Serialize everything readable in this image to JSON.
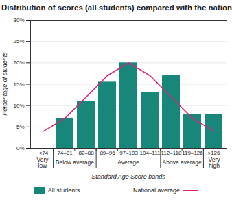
{
  "chart_data": {
    "type": "bar",
    "title": "Distribution of scores (all students) compared with the national sample",
    "x_label": "Standard Age Score bands",
    "y_label": "Percentage of students",
    "categories": [
      "<74",
      "74–81",
      "82–88",
      "89–96",
      "97–103",
      "104–111",
      "112–118",
      "119–126",
      ">126"
    ],
    "series": [
      {
        "name": "All students",
        "type": "bar",
        "color": "#17877a",
        "values": [
          0,
          7,
          11,
          15.5,
          20,
          13,
          17,
          8,
          8
        ]
      },
      {
        "name": "National average",
        "type": "line",
        "color": "#d6247a",
        "values": [
          4,
          7,
          12,
          17,
          20,
          17,
          12,
          7,
          4
        ]
      }
    ],
    "category_groups": [
      {
        "label": "Very low",
        "categories": [
          "<74"
        ]
      },
      {
        "label": "Below average",
        "categories": [
          "74–81",
          "82–88"
        ]
      },
      {
        "label": "Average",
        "categories": [
          "89–96",
          "97–103",
          "104–111"
        ]
      },
      {
        "label": "Above average",
        "categories": [
          "112–118",
          "119–126"
        ]
      },
      {
        "label": "Very high",
        "categories": [
          ">126"
        ]
      }
    ],
    "ylim": [
      0,
      30
    ],
    "yticks": [
      {
        "value": 0,
        "label": "0%"
      },
      {
        "value": 5,
        "label": "5%"
      },
      {
        "value": 10,
        "label": "10%"
      },
      {
        "value": 15,
        "label": "15%"
      },
      {
        "value": 20,
        "label": "20%"
      },
      {
        "value": 25,
        "label": "25%"
      },
      {
        "value": 30,
        "label": "30%"
      }
    ],
    "grid": true,
    "legend": "bottom"
  }
}
